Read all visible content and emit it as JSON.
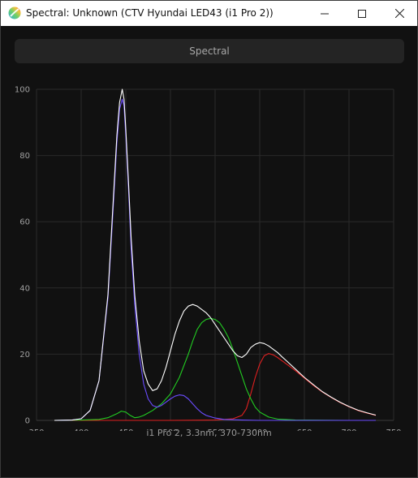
{
  "window": {
    "title": "Spectral: Unknown (CTV Hyundai LED43 (i1 Pro 2))",
    "icon": "app-color-wheel-icon"
  },
  "controls": {
    "minimize_icon": "minimize-icon",
    "maximize_icon": "maximize-icon",
    "close_icon": "close-icon"
  },
  "tab": {
    "label": "Spectral"
  },
  "chart_data": {
    "type": "line",
    "title": "",
    "xlabel": "i1 Pro 2, 3.3nm, 370-730nm",
    "ylabel": "",
    "xlim": [
      350,
      750
    ],
    "ylim": [
      0,
      100
    ],
    "xticks": [
      350,
      400,
      450,
      500,
      550,
      600,
      650,
      700,
      750
    ],
    "yticks": [
      0,
      20,
      40,
      60,
      80,
      100
    ],
    "grid": true,
    "legend": "none",
    "series": [
      {
        "color": "#ffffff",
        "x": [
          370,
          390,
          400,
          410,
          420,
          430,
          435,
          440,
          443,
          446,
          448,
          450,
          453,
          456,
          460,
          465,
          470,
          475,
          480,
          485,
          490,
          495,
          500,
          505,
          510,
          515,
          520,
          525,
          530,
          535,
          540,
          545,
          550,
          555,
          560,
          565,
          570,
          575,
          580,
          585,
          590,
          595,
          600,
          605,
          610,
          615,
          620,
          625,
          630,
          640,
          650,
          660,
          670,
          680,
          690,
          700,
          710,
          720,
          730
        ],
        "y": [
          0,
          0.1,
          0.5,
          3,
          12,
          38,
          62,
          86,
          96,
          100,
          97,
          88,
          72,
          55,
          38,
          24,
          15,
          11,
          9,
          9.5,
          12,
          16,
          21,
          26,
          30,
          33,
          34.5,
          35,
          34.5,
          33.5,
          32.5,
          31,
          29,
          27,
          25,
          23,
          21,
          19.5,
          19,
          20,
          22,
          23,
          23.5,
          23.2,
          22.5,
          21.5,
          20.5,
          19.2,
          18,
          15.5,
          13,
          10.8,
          8.7,
          7,
          5.5,
          4.2,
          3.1,
          2.3,
          1.6
        ]
      },
      {
        "color": "#6a4cff",
        "x": [
          370,
          390,
          400,
          410,
          420,
          430,
          435,
          440,
          443,
          446,
          448,
          450,
          453,
          456,
          460,
          465,
          470,
          475,
          480,
          485,
          490,
          495,
          500,
          505,
          510,
          515,
          520,
          525,
          530,
          535,
          540,
          550,
          560,
          580,
          600,
          650,
          700,
          730
        ],
        "y": [
          0,
          0.1,
          0.5,
          3,
          12,
          37,
          60,
          84,
          94,
          97,
          95,
          86,
          70,
          52,
          35,
          20,
          11,
          6.5,
          4.5,
          4,
          4.5,
          5.5,
          6.5,
          7.3,
          7.7,
          7.5,
          6.5,
          5,
          3.5,
          2.3,
          1.5,
          0.7,
          0.3,
          0.1,
          0,
          0,
          0,
          0
        ]
      },
      {
        "color": "#22cc22",
        "x": [
          370,
          400,
          420,
          430,
          440,
          445,
          450,
          455,
          460,
          465,
          470,
          480,
          490,
          500,
          510,
          520,
          525,
          530,
          535,
          540,
          545,
          550,
          555,
          560,
          565,
          570,
          575,
          580,
          585,
          590,
          595,
          600,
          610,
          620,
          640,
          700,
          730
        ],
        "y": [
          0,
          0.1,
          0.3,
          0.8,
          2,
          2.8,
          2.5,
          1.5,
          0.8,
          1,
          1.5,
          3,
          5,
          8,
          13,
          20,
          24,
          27.5,
          29.5,
          30.5,
          30.8,
          30.5,
          29.5,
          27.5,
          25,
          21.5,
          17.5,
          13.5,
          9.5,
          6.5,
          4,
          2.5,
          1,
          0.4,
          0.1,
          0,
          0
        ]
      },
      {
        "color": "#e02020",
        "x": [
          370,
          450,
          500,
          550,
          570,
          580,
          585,
          590,
          595,
          600,
          605,
          610,
          615,
          620,
          625,
          630,
          640,
          650,
          660,
          670,
          680,
          690,
          700,
          710,
          720,
          730
        ],
        "y": [
          0,
          0,
          0,
          0.1,
          0.5,
          1.5,
          3.5,
          8,
          13,
          17,
          19.5,
          20.2,
          19.8,
          19,
          18,
          17,
          15,
          12.8,
          10.6,
          8.6,
          6.9,
          5.4,
          4.1,
          3.0,
          2.2,
          1.5
        ]
      }
    ]
  }
}
